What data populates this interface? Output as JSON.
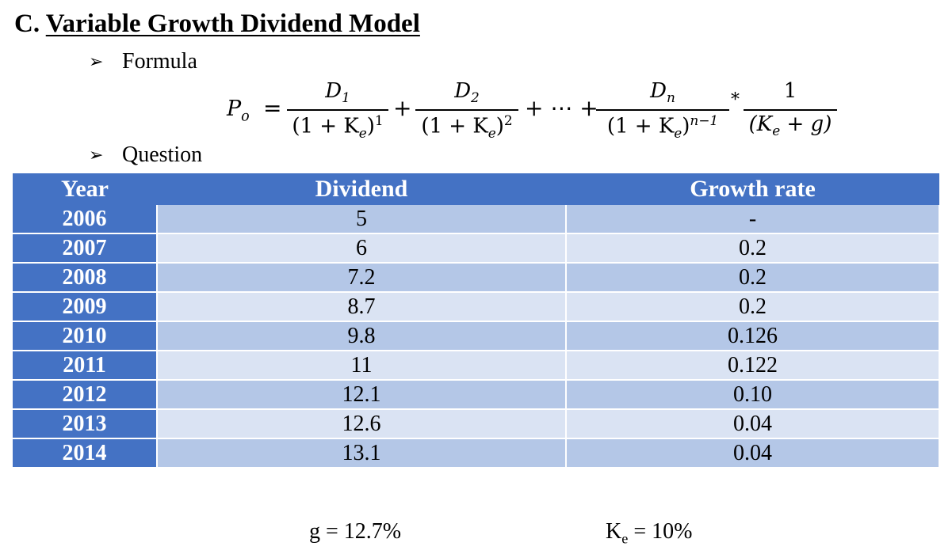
{
  "heading": {
    "prefix": "C.",
    "title": "Variable Growth Dividend Model"
  },
  "bullets": {
    "arrow": "➢",
    "formula": "Formula",
    "question": "Question"
  },
  "formula": {
    "lhs": "P",
    "lhs_sub": "o",
    "equals": "=",
    "num1": "D",
    "num1_sub": "1",
    "den1": "(1 + K",
    "den_sub": "e",
    "den_close": ")",
    "den1_sup": "1",
    "plus": "+",
    "num2": "D",
    "num2_sub": "2",
    "den2_sup": "2",
    "ellipsis": "+ ⋯ +",
    "numn": "D",
    "numn_sub": "n",
    "denn_sup": "n−1",
    "times": "*",
    "num4": "1",
    "den4_open": "(K",
    "den4_sub": "e",
    "den4_rest": " + g)"
  },
  "table": {
    "headers": [
      "Year",
      "Dividend",
      "Growth rate"
    ],
    "rows": [
      {
        "year": "2006",
        "dividend": "5",
        "growth": "-"
      },
      {
        "year": "2007",
        "dividend": "6",
        "growth": "0.2"
      },
      {
        "year": "2008",
        "dividend": "7.2",
        "growth": "0.2"
      },
      {
        "year": "2009",
        "dividend": "8.7",
        "growth": "0.2"
      },
      {
        "year": "2010",
        "dividend": "9.8",
        "growth": "0.126"
      },
      {
        "year": "2011",
        "dividend": "11",
        "growth": "0.122"
      },
      {
        "year": "2012",
        "dividend": "12.1",
        "growth": "0.10"
      },
      {
        "year": "2013",
        "dividend": "12.6",
        "growth": "0.04"
      },
      {
        "year": "2014",
        "dividend": "13.1",
        "growth": "0.04"
      }
    ]
  },
  "footer": {
    "g": "g = 12.7%",
    "ke_k": "K",
    "ke_sub": "e",
    "ke_rest": " = 10%"
  },
  "colors": {
    "header": "#4472c4",
    "band_dark": "#b4c7e7",
    "band_light": "#dae3f3"
  }
}
